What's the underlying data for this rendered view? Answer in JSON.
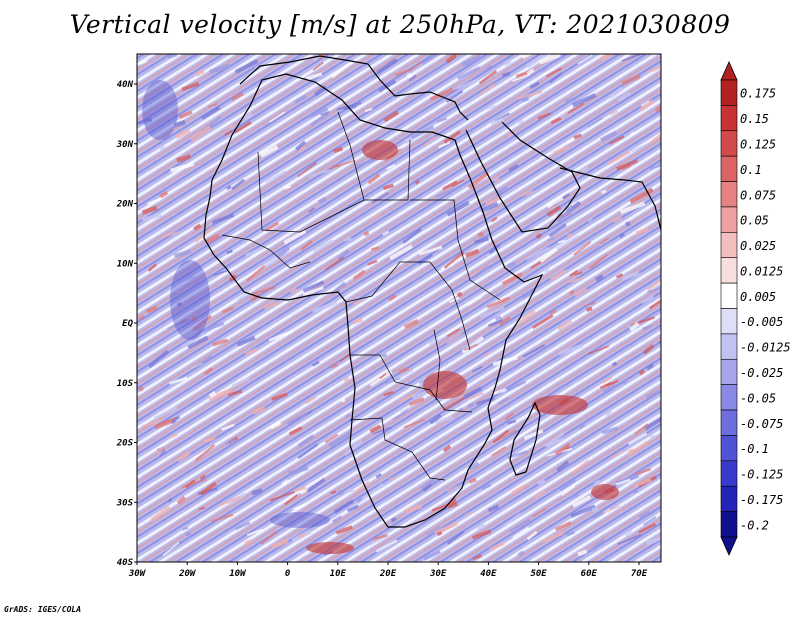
{
  "title": "Vertical velocity [m/s] at 250hPa, VT: 2021030809",
  "credit": "GrADS: IGES/COLA",
  "map": {
    "lat_labels": [
      "40N",
      "30N",
      "20N",
      "10N",
      "EQ",
      "10S",
      "20S",
      "30S",
      "40S"
    ],
    "lon_labels": [
      "30W",
      "20W",
      "10W",
      "0",
      "10E",
      "20E",
      "30E",
      "40E",
      "50E",
      "60E",
      "70E"
    ]
  },
  "colorbar": {
    "levels": [
      "0.175",
      "0.15",
      "0.125",
      "0.1",
      "0.075",
      "0.05",
      "0.025",
      "0.0125",
      "0.005",
      "-0.005",
      "-0.0125",
      "-0.025",
      "-0.05",
      "-0.075",
      "-0.1",
      "-0.125",
      "-0.175",
      "-0.2"
    ],
    "colors": [
      "#b22222",
      "#c83232",
      "#d24a4a",
      "#dc6464",
      "#e68282",
      "#eda0a0",
      "#f4bebe",
      "#f9dede",
      "#ffffff",
      "#dedef9",
      "#c2c2f2",
      "#a6a6ec",
      "#8a8ae6",
      "#6e6ee0",
      "#5252d6",
      "#3a3acc",
      "#2424b8",
      "#10108e"
    ]
  }
}
